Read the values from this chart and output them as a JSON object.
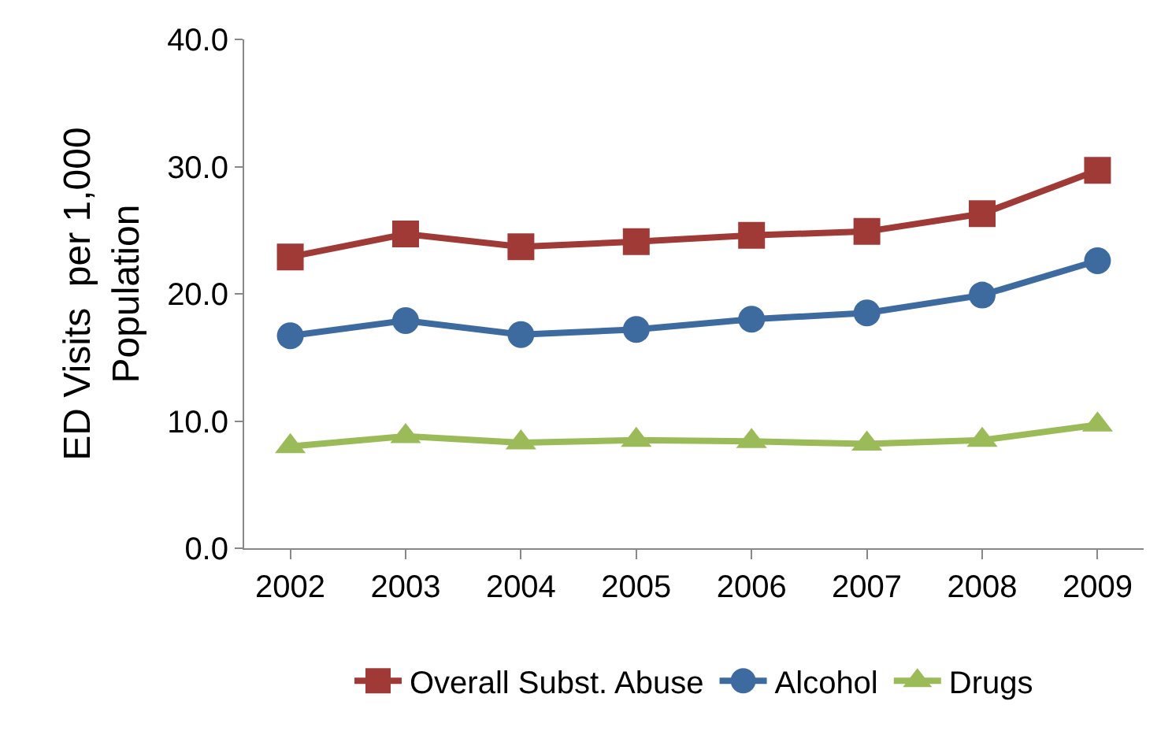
{
  "chart_data": {
    "type": "line",
    "categories": [
      "2002",
      "2003",
      "2004",
      "2005",
      "2006",
      "2007",
      "2008",
      "2009"
    ],
    "ylabel": "ED Visits  per 1,000\nPopulation",
    "ylim": [
      0,
      40
    ],
    "yticks": [
      {
        "value": 0,
        "label": "0.0"
      },
      {
        "value": 10,
        "label": "10.0"
      },
      {
        "value": 20,
        "label": "20.0"
      },
      {
        "value": 30,
        "label": "30.0"
      },
      {
        "value": 40,
        "label": "40.0"
      }
    ],
    "legend": "bottom",
    "line_style": "solid",
    "series": [
      {
        "name": "Overall Subst. Abuse",
        "color": "#a03a37",
        "marker": "square",
        "values": [
          22.9,
          24.7,
          23.7,
          24.1,
          24.6,
          24.9,
          26.3,
          29.7
        ]
      },
      {
        "name": "Alcohol",
        "color": "#3e6b9f",
        "marker": "circle",
        "values": [
          16.7,
          17.9,
          16.8,
          17.2,
          18.0,
          18.5,
          19.9,
          22.6
        ]
      },
      {
        "name": "Drugs",
        "color": "#9bbb59",
        "marker": "triangle",
        "values": [
          8.0,
          8.8,
          8.3,
          8.5,
          8.4,
          8.2,
          8.5,
          9.7
        ]
      }
    ]
  }
}
